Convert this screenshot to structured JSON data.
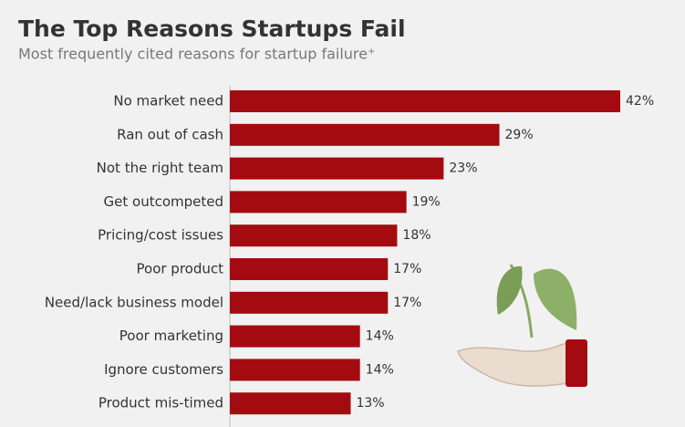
{
  "chart_data": {
    "type": "bar",
    "orientation": "horizontal",
    "title": "The Top Reasons Startups Fail",
    "subtitle": "Most frequently cited reasons for startup failure⁺",
    "categories": [
      "No market need",
      "Ran out of cash",
      "Not the right team",
      "Get outcompeted",
      "Pricing/cost issues",
      "Poor product",
      "Need/lack business model",
      "Poor marketing",
      "Ignore customers",
      "Product mis-timed"
    ],
    "values": [
      42,
      29,
      23,
      19,
      18,
      17,
      17,
      14,
      14,
      13
    ],
    "value_labels": [
      "42%",
      "29%",
      "23%",
      "19%",
      "18%",
      "17%",
      "17%",
      "14%",
      "14%",
      "13%"
    ],
    "color": "#a30b10"
  }
}
